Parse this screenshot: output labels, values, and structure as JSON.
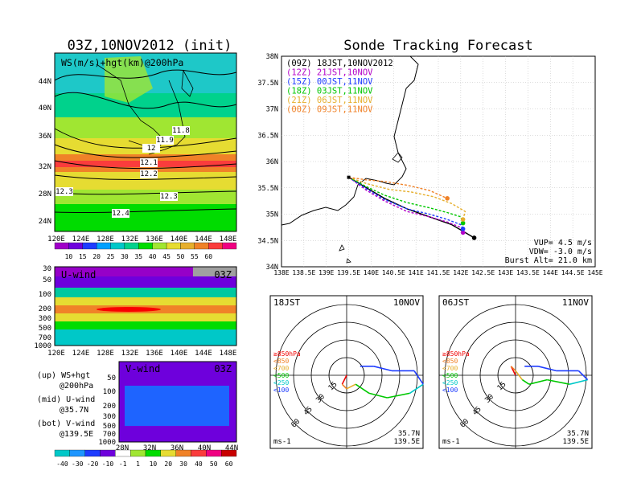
{
  "left_panel": {
    "title": "03Z,10NOV2012 (init)",
    "top_map": {
      "label": "WS(m/s)+hgt(km)@200hPa",
      "lat_ticks": [
        "44N",
        "40N",
        "36N",
        "32N",
        "28N",
        "24N"
      ],
      "lon_ticks": [
        "120E",
        "124E",
        "128E",
        "132E",
        "136E",
        "140E",
        "144E",
        "148E"
      ],
      "contour_labels": [
        "11.8",
        "11.9",
        "12",
        "12.1",
        "12.2",
        "12.3",
        "12.3",
        "12.4"
      ],
      "colorbar_ticks": [
        "10",
        "15",
        "20",
        "25",
        "30",
        "35",
        "40",
        "45",
        "50",
        "55",
        "60"
      ],
      "colorbar_colors": [
        "#a000c8",
        "#6e00dc",
        "#1e3cff",
        "#00a0ff",
        "#00c8c8",
        "#00d28c",
        "#00dc00",
        "#a0e632",
        "#e6dc32",
        "#e6af2d",
        "#f08228",
        "#fa3c3c",
        "#f00082"
      ]
    },
    "u_wind": {
      "label": "U-wind",
      "time": "03Z",
      "p_ticks": [
        "30",
        "50",
        "100",
        "200",
        "300",
        "500",
        "700",
        "1000"
      ],
      "lon_ticks": [
        "120E",
        "124E",
        "128E",
        "132E",
        "136E",
        "140E",
        "144E",
        "148E"
      ]
    },
    "v_wind": {
      "label": "V-wind",
      "time": "03Z",
      "p_ticks": [
        "50",
        "100",
        "200",
        "300",
        "500",
        "700",
        "1000"
      ],
      "lat_ticks": [
        "28N",
        "32N",
        "36N",
        "40N",
        "44N"
      ]
    },
    "bottom_colorbar_ticks": [
      "-40",
      "-30",
      "-20",
      "-10",
      "-1",
      "1",
      "10",
      "20",
      "30",
      "40",
      "50",
      "60"
    ],
    "legend_notes": [
      {
        "line1": "(up) WS+hgt",
        "line2": "@200hPa"
      },
      {
        "line1": "(mid) U-wind",
        "line2": "@35.7N"
      },
      {
        "line1": "(bot) V-wind",
        "line2": "@139.5E"
      }
    ]
  },
  "chart_data": {
    "type": "line",
    "title": "Sonde Tracking Forecast",
    "x_ticks": [
      "138E",
      "138.5E",
      "139E",
      "139.5E",
      "140E",
      "140.5E",
      "141E",
      "141.5E",
      "142E",
      "142.5E",
      "143E",
      "143.5E",
      "144E",
      "144.5E",
      "145E"
    ],
    "y_ticks": [
      "38N",
      "37.5N",
      "37N",
      "36.5N",
      "36N",
      "35.5N",
      "35N",
      "34.5N",
      "34N"
    ],
    "xlim": [
      138,
      145
    ],
    "ylim": [
      34,
      38
    ],
    "launch_point": {
      "lon": 139.5,
      "lat": 35.7
    },
    "series": [
      {
        "name": "(09Z) 18JST,10NOV2012",
        "color": "#000000",
        "dash": false,
        "lon": [
          139.5,
          139.9,
          140.3,
          140.8,
          141.3,
          141.8,
          142.1,
          142.3
        ],
        "lat": [
          35.7,
          35.5,
          35.3,
          35.1,
          34.95,
          34.8,
          34.65,
          34.55
        ]
      },
      {
        "name": "(12Z) 21JST,10NOV",
        "color": "#b400c8",
        "dash": true,
        "lon": [
          139.5,
          139.9,
          140.3,
          140.8,
          141.3,
          141.7,
          142.0,
          142.05
        ],
        "lat": [
          35.7,
          35.45,
          35.25,
          35.05,
          34.95,
          34.85,
          34.75,
          34.65
        ]
      },
      {
        "name": "(15Z) 00JST,11NOV",
        "color": "#1e3cff",
        "dash": true,
        "lon": [
          139.5,
          139.9,
          140.3,
          140.8,
          141.3,
          141.7,
          142.0,
          142.05
        ],
        "lat": [
          35.7,
          35.48,
          35.28,
          35.1,
          35.0,
          34.9,
          34.8,
          34.72
        ]
      },
      {
        "name": "(18Z) 03JST,11NOV",
        "color": "#00c800",
        "dash": true,
        "lon": [
          139.5,
          139.9,
          140.3,
          140.8,
          141.3,
          141.7,
          142.0,
          142.05
        ],
        "lat": [
          35.7,
          35.52,
          35.36,
          35.22,
          35.12,
          35.03,
          34.95,
          34.83
        ]
      },
      {
        "name": "(21Z) 06JST,11NOV",
        "color": "#e6af2d",
        "dash": true,
        "lon": [
          139.5,
          139.9,
          140.4,
          140.9,
          141.4,
          141.8,
          142.1,
          142.05
        ],
        "lat": [
          35.7,
          35.58,
          35.47,
          35.42,
          35.33,
          35.2,
          35.05,
          34.9
        ]
      },
      {
        "name": "(00Z) 09JST,11NOV",
        "color": "#f08228",
        "dash": true,
        "lon": [
          139.5,
          139.9,
          140.3,
          140.8,
          141.3,
          141.7
        ],
        "lat": [
          35.7,
          35.65,
          35.62,
          35.55,
          35.45,
          35.3
        ]
      }
    ],
    "params": [
      "VUP= 4.5 m/s",
      "VDW= -3.0 m/s",
      "Burst Alt= 21.0 km"
    ]
  },
  "hodograph_1": {
    "time": "18JST",
    "date": "10NOV",
    "lat": "35.7N",
    "lon": "139.5E",
    "units": "ms-1",
    "ring_labels": [
      "15",
      "30",
      "45",
      "60"
    ],
    "levels": [
      {
        "label": "≥850hPa",
        "color": "#f00000"
      },
      {
        "label": "<850",
        "color": "#f08228"
      },
      {
        "label": "<700",
        "color": "#e6af2d"
      },
      {
        "label": "<500",
        "color": "#00c800"
      },
      {
        "label": "<250",
        "color": "#00c8c8"
      },
      {
        "label": "<100",
        "color": "#1e3cff"
      }
    ],
    "u": [
      0,
      -2,
      0,
      4,
      10,
      18,
      28,
      34,
      30,
      20,
      12,
      6
    ],
    "v": [
      0,
      -4,
      -6,
      -4,
      -8,
      -10,
      -8,
      -4,
      2,
      2,
      4,
      4
    ]
  },
  "hodograph_2": {
    "time": "06JST",
    "date": "11NOV",
    "lat": "35.7N",
    "lon": "139.5E",
    "units": "ms-1",
    "ring_labels": [
      "15",
      "30",
      "45",
      "60"
    ],
    "levels": [
      {
        "label": "≥850hPa",
        "color": "#f00000"
      },
      {
        "label": "<850",
        "color": "#f08228"
      },
      {
        "label": "<700",
        "color": "#e6af2d"
      },
      {
        "label": "<500",
        "color": "#00c800"
      },
      {
        "label": "<250",
        "color": "#00c8c8"
      },
      {
        "label": "<100",
        "color": "#1e3cff"
      }
    ],
    "u": [
      0,
      -2,
      0,
      3,
      6,
      14,
      24,
      32,
      28,
      18,
      10,
      4
    ],
    "v": [
      0,
      4,
      2,
      -2,
      -4,
      -2,
      -4,
      -2,
      2,
      2,
      4,
      4
    ]
  }
}
